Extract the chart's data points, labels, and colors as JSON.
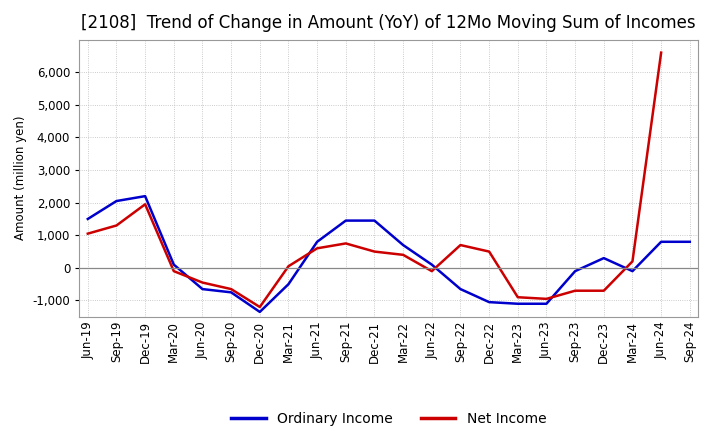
{
  "title": "[2108]  Trend of Change in Amount (YoY) of 12Mo Moving Sum of Incomes",
  "ylabel": "Amount (million yen)",
  "x_labels": [
    "Jun-19",
    "Sep-19",
    "Dec-19",
    "Mar-20",
    "Jun-20",
    "Sep-20",
    "Dec-20",
    "Mar-21",
    "Jun-21",
    "Sep-21",
    "Dec-21",
    "Mar-22",
    "Jun-22",
    "Sep-22",
    "Dec-22",
    "Mar-23",
    "Jun-23",
    "Sep-23",
    "Dec-23",
    "Mar-24",
    "Jun-24",
    "Sep-24"
  ],
  "ordinary_income": [
    1500,
    2050,
    2200,
    100,
    -650,
    -750,
    -1350,
    -500,
    800,
    1450,
    1450,
    700,
    100,
    -650,
    -1050,
    -1100,
    -1100,
    -100,
    300,
    -100,
    800,
    800
  ],
  "net_income": [
    1050,
    1300,
    1950,
    -100,
    -450,
    -650,
    -1200,
    50,
    600,
    750,
    500,
    400,
    -100,
    700,
    500,
    -900,
    -950,
    -700,
    -700,
    200,
    6600,
    null
  ],
  "ordinary_color": "#0000cc",
  "net_color": "#cc0000",
  "ylim_min": -1500,
  "ylim_max": 7000,
  "yticks": [
    -1000,
    0,
    1000,
    2000,
    3000,
    4000,
    5000,
    6000
  ],
  "bg_color": "#ffffff",
  "plot_bg_color": "#ffffff",
  "grid_color": "#bbbbbb",
  "zero_line_color": "#888888",
  "legend_labels": [
    "Ordinary Income",
    "Net Income"
  ],
  "title_fontsize": 12,
  "axis_fontsize": 8.5,
  "legend_fontsize": 10
}
